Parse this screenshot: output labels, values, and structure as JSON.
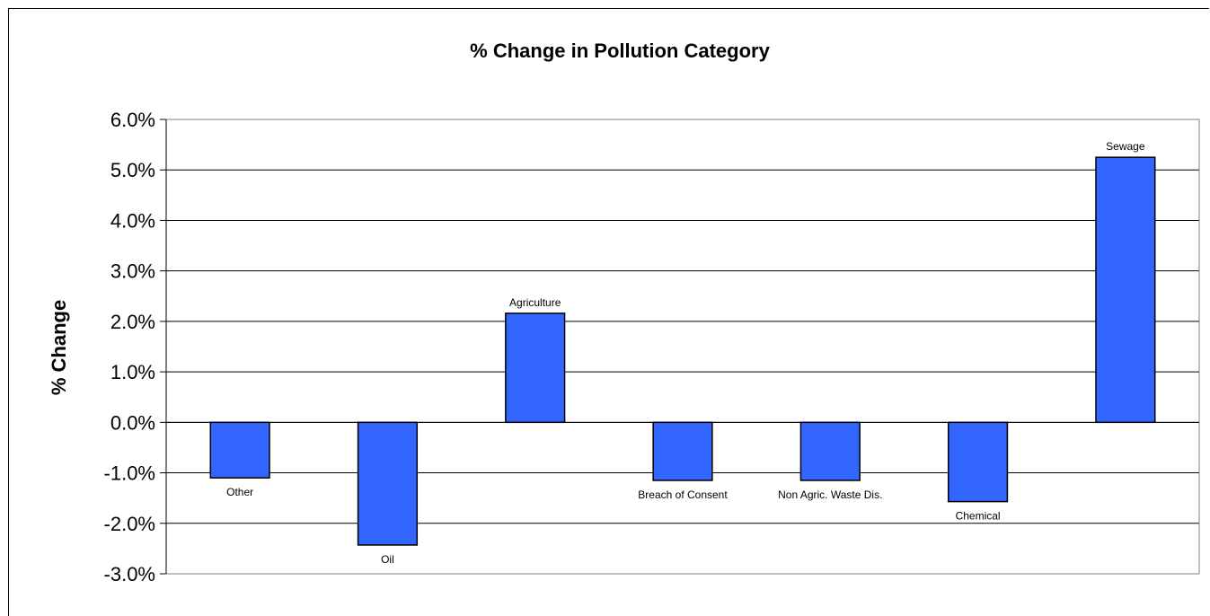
{
  "chart_data": {
    "type": "bar",
    "title": "% Change in Pollution Category",
    "ylabel": "% Change",
    "xlabel": "",
    "categories": [
      "Other",
      "Oil",
      "Agriculture",
      "Breach of Consent",
      "Non Agric. Waste Dis.",
      "Chemical",
      "Sewage"
    ],
    "values": [
      -1.1,
      -2.43,
      2.16,
      -1.15,
      -1.15,
      -1.57,
      5.25
    ],
    "value_unit": "%",
    "ylim": [
      -3.0,
      6.0
    ],
    "yticks": [
      -3.0,
      -2.0,
      -1.0,
      0.0,
      1.0,
      2.0,
      3.0,
      4.0,
      5.0,
      6.0
    ],
    "ytick_labels": [
      "-3.0%",
      "-2.0%",
      "-1.0%",
      "0.0%",
      "1.0%",
      "2.0%",
      "3.0%",
      "4.0%",
      "5.0%",
      "6.0%"
    ],
    "grid": true,
    "legend": "none",
    "colors": {
      "bar_fill": "#3366FF",
      "bar_stroke": "#000000",
      "gridline": "#000000",
      "plot_border": "#808080"
    }
  }
}
